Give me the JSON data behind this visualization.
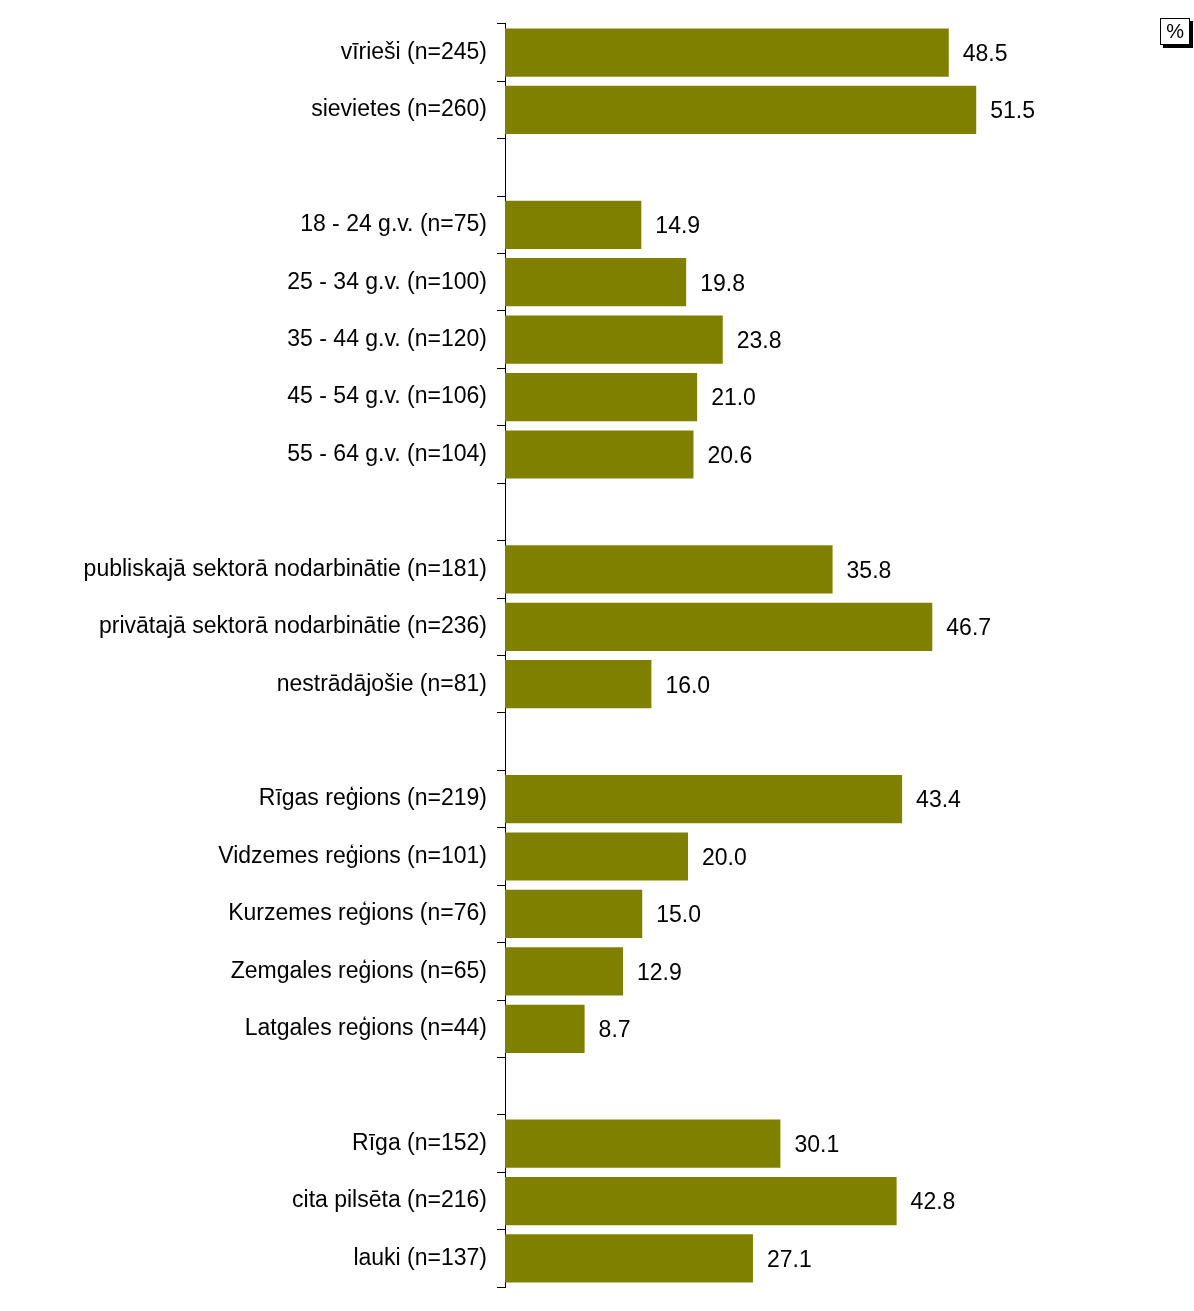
{
  "chart_data": {
    "type": "bar",
    "orientation": "horizontal",
    "categories": [
      "vīrieši (n=245)",
      "sievietes (n=260)",
      null,
      "18 - 24 g.v. (n=75)",
      "25 - 34 g.v. (n=100)",
      "35 - 44 g.v. (n=120)",
      "45 - 54 g.v. (n=106)",
      "55 - 64 g.v. (n=104)",
      null,
      "publiskajā sektorā nodarbinātie (n=181)",
      "privātajā sektorā nodarbinātie (n=236)",
      "nestrādājošie (n=81)",
      null,
      "Rīgas reģions (n=219)",
      "Vidzemes reģions (n=101)",
      "Kurzemes reģions (n=76)",
      "Zemgales reģions (n=65)",
      "Latgales reģions (n=44)",
      null,
      "Rīga (n=152)",
      "cita pilsēta (n=216)",
      "lauki (n=137)"
    ],
    "values": [
      48.5,
      51.5,
      null,
      14.9,
      19.8,
      23.8,
      21.0,
      20.6,
      null,
      35.8,
      46.7,
      16.0,
      null,
      43.4,
      20.0,
      15.0,
      12.9,
      8.7,
      null,
      30.1,
      42.8,
      27.1
    ],
    "value_labels": [
      "48.5",
      "51.5",
      null,
      "14.9",
      "19.8",
      "23.8",
      "21.0",
      "20.6",
      null,
      "35.8",
      "46.7",
      "16.0",
      null,
      "43.4",
      "20.0",
      "15.0",
      "12.9",
      "8.7",
      null,
      "30.1",
      "42.8",
      "27.1"
    ],
    "color": "#808000",
    "grid": false,
    "legend": false,
    "tick_labels": "y",
    "annotations": [
      "%"
    ]
  }
}
